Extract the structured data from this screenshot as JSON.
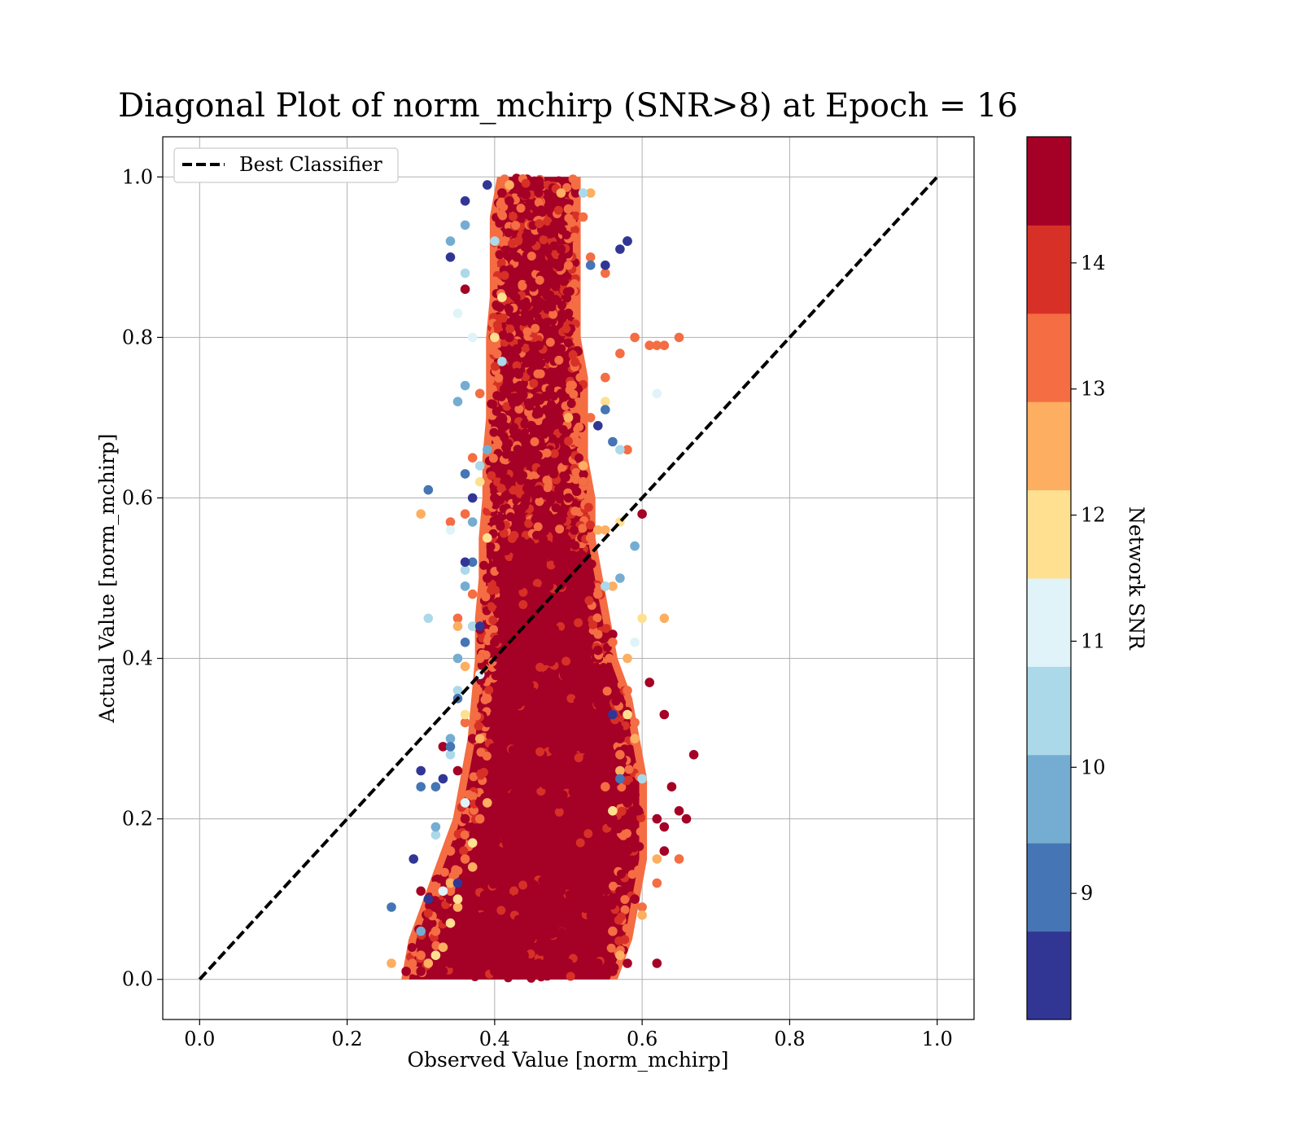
{
  "chart_data": {
    "type": "scatter",
    "title": "Diagonal Plot of norm_mchirp (SNR>8) at Epoch = 16",
    "xlabel": "Observed Value [norm_mchirp]",
    "ylabel": "Actual Value [norm_mchirp]",
    "xlim": [
      -0.05,
      1.05
    ],
    "ylim": [
      -0.05,
      1.05
    ],
    "xticks": [
      "0.0",
      "0.2",
      "0.4",
      "0.6",
      "0.8",
      "1.0"
    ],
    "yticks": [
      "0.0",
      "0.2",
      "0.4",
      "0.6",
      "0.8",
      "1.0"
    ],
    "grid": true,
    "legend": {
      "position": "top-left",
      "entries": [
        "Best Classifier"
      ]
    },
    "reference_line": {
      "name": "Best Classifier",
      "style": "dashed",
      "color": "#000000",
      "x": [
        0.0,
        1.0
      ],
      "y": [
        0.0,
        1.0
      ]
    },
    "colorbar": {
      "label": "Network SNR",
      "ticks": [
        "9",
        "10",
        "11",
        "12",
        "13",
        "14"
      ],
      "range": [
        8.0,
        15.0
      ],
      "colors": [
        "#313695",
        "#4575b4",
        "#74add1",
        "#abd9e9",
        "#e0f3f8",
        "#fee090",
        "#fdae61",
        "#f46d43",
        "#d73027",
        "#a50026"
      ]
    },
    "density_envelope": {
      "y": [
        0.0,
        0.05,
        0.1,
        0.15,
        0.2,
        0.25,
        0.3,
        0.35,
        0.4,
        0.45,
        0.5,
        0.55,
        0.6,
        0.65,
        0.7,
        0.75,
        0.8,
        0.85,
        0.9,
        0.95,
        1.0
      ],
      "xmin": [
        0.28,
        0.29,
        0.31,
        0.33,
        0.35,
        0.36,
        0.37,
        0.375,
        0.38,
        0.38,
        0.385,
        0.385,
        0.39,
        0.39,
        0.395,
        0.395,
        0.395,
        0.4,
        0.4,
        0.4,
        0.41
      ],
      "xmax": [
        0.56,
        0.58,
        0.59,
        0.6,
        0.6,
        0.6,
        0.59,
        0.58,
        0.56,
        0.55,
        0.54,
        0.53,
        0.53,
        0.52,
        0.52,
        0.52,
        0.51,
        0.51,
        0.51,
        0.51,
        0.51
      ]
    },
    "series": [
      {
        "snr": 14.5,
        "x": [
          0.28,
          0.3,
          0.32,
          0.34,
          0.36,
          0.38,
          0.4,
          0.42,
          0.44,
          0.46,
          0.48,
          0.5,
          0.52,
          0.54,
          0.56,
          0.58,
          0.33,
          0.35,
          0.37,
          0.39,
          0.41,
          0.43,
          0.45,
          0.47,
          0.49,
          0.51,
          0.53,
          0.55,
          0.57,
          0.59,
          0.36,
          0.38,
          0.4,
          0.42,
          0.44,
          0.46,
          0.48,
          0.5,
          0.52,
          0.54,
          0.56,
          0.58,
          0.37,
          0.39,
          0.41,
          0.43,
          0.45,
          0.47,
          0.49,
          0.51,
          0.53,
          0.55,
          0.57,
          0.38,
          0.4,
          0.42,
          0.44,
          0.46,
          0.48,
          0.5,
          0.52,
          0.54,
          0.56,
          0.39,
          0.41,
          0.43,
          0.45,
          0.47,
          0.49,
          0.51,
          0.53,
          0.4,
          0.42,
          0.44,
          0.46,
          0.48,
          0.5,
          0.52,
          0.41,
          0.43,
          0.45,
          0.47,
          0.49,
          0.51,
          0.42,
          0.44,
          0.46,
          0.48,
          0.5,
          0.43,
          0.45,
          0.47,
          0.49,
          0.51,
          0.66,
          0.67,
          0.63,
          0.62,
          0.61,
          0.64,
          0.6,
          0.65,
          0.35,
          0.33,
          0.55,
          0.58,
          0.34,
          0.63,
          0.62,
          0.3,
          0.59,
          0.36,
          0.63,
          0.41,
          0.42,
          0.49
        ],
        "y": [
          0.01,
          0.01,
          0.02,
          0.02,
          0.03,
          0.02,
          0.01,
          0.02,
          0.03,
          0.02,
          0.01,
          0.02,
          0.03,
          0.02,
          0.01,
          0.02,
          0.08,
          0.1,
          0.12,
          0.09,
          0.11,
          0.1,
          0.12,
          0.09,
          0.11,
          0.1,
          0.12,
          0.09,
          0.11,
          0.1,
          0.2,
          0.22,
          0.19,
          0.21,
          0.23,
          0.2,
          0.22,
          0.19,
          0.21,
          0.23,
          0.2,
          0.22,
          0.3,
          0.32,
          0.29,
          0.31,
          0.33,
          0.3,
          0.32,
          0.29,
          0.31,
          0.33,
          0.3,
          0.4,
          0.42,
          0.39,
          0.41,
          0.43,
          0.4,
          0.42,
          0.39,
          0.41,
          0.43,
          0.5,
          0.52,
          0.49,
          0.51,
          0.53,
          0.5,
          0.52,
          0.49,
          0.6,
          0.62,
          0.59,
          0.61,
          0.63,
          0.6,
          0.62,
          0.7,
          0.72,
          0.69,
          0.71,
          0.73,
          0.7,
          0.8,
          0.82,
          0.79,
          0.81,
          0.83,
          0.9,
          0.92,
          0.89,
          0.91,
          0.98,
          0.2,
          0.28,
          0.33,
          0.02,
          0.37,
          0.24,
          0.58,
          0.21,
          0.26,
          0.29,
          0.13,
          0.16,
          0.1,
          0.16,
          0.2,
          0.11,
          0.23,
          0.86,
          0.19,
          0.98,
          0.97,
          0.97
        ]
      },
      {
        "snr": 13.5,
        "x": [
          0.3,
          0.32,
          0.34,
          0.36,
          0.38,
          0.55,
          0.57,
          0.59,
          0.58,
          0.56,
          0.54,
          0.53,
          0.52,
          0.36,
          0.37,
          0.38,
          0.39,
          0.53,
          0.55,
          0.57,
          0.59,
          0.61,
          0.63,
          0.62,
          0.65,
          0.65,
          0.62,
          0.6,
          0.56,
          0.53,
          0.52,
          0.51,
          0.5,
          0.34,
          0.36,
          0.38,
          0.37,
          0.35,
          0.34,
          0.55,
          0.58
        ],
        "y": [
          0.03,
          0.06,
          0.11,
          0.15,
          0.2,
          0.24,
          0.28,
          0.32,
          0.36,
          0.42,
          0.48,
          0.55,
          0.62,
          0.58,
          0.48,
          0.4,
          0.35,
          0.7,
          0.75,
          0.78,
          0.8,
          0.79,
          0.79,
          0.79,
          0.8,
          0.15,
          0.12,
          0.09,
          0.06,
          0.9,
          0.95,
          0.99,
          0.96,
          0.16,
          0.32,
          0.73,
          0.65,
          0.45,
          0.57,
          0.88,
          0.66
        ]
      },
      {
        "snr": 12.5,
        "x": [
          0.31,
          0.33,
          0.35,
          0.37,
          0.39,
          0.57,
          0.59,
          0.58,
          0.56,
          0.54,
          0.52,
          0.5,
          0.26,
          0.63,
          0.62,
          0.3,
          0.36,
          0.38,
          0.35,
          0.34,
          0.55,
          0.6,
          0.57,
          0.53,
          0.42,
          0.49
        ],
        "y": [
          0.02,
          0.04,
          0.09,
          0.14,
          0.22,
          0.26,
          0.3,
          0.4,
          0.49,
          0.56,
          0.64,
          0.7,
          0.02,
          0.45,
          0.15,
          0.58,
          0.39,
          0.3,
          0.44,
          0.12,
          0.56,
          0.08,
          0.03,
          0.98,
          0.99,
          0.98
        ]
      },
      {
        "snr": 11.5,
        "x": [
          0.32,
          0.34,
          0.35,
          0.37,
          0.56,
          0.58,
          0.6,
          0.55,
          0.38,
          0.39,
          0.36,
          0.57,
          0.4,
          0.41
        ],
        "y": [
          0.03,
          0.07,
          0.1,
          0.17,
          0.21,
          0.33,
          0.45,
          0.72,
          0.62,
          0.55,
          0.33,
          0.57,
          0.8,
          0.85
        ]
      },
      {
        "snr": 11.0,
        "x": [
          0.33,
          0.36,
          0.38,
          0.62,
          0.35,
          0.37,
          0.59,
          0.34
        ],
        "y": [
          0.11,
          0.22,
          0.38,
          0.73,
          0.83,
          0.8,
          0.42,
          0.56
        ]
      },
      {
        "snr": 10.3,
        "x": [
          0.32,
          0.34,
          0.35,
          0.37,
          0.36,
          0.38,
          0.41,
          0.31,
          0.57,
          0.6,
          0.55,
          0.52,
          0.36,
          0.4
        ],
        "y": [
          0.18,
          0.28,
          0.36,
          0.44,
          0.51,
          0.64,
          0.77,
          0.45,
          0.66,
          0.25,
          0.49,
          0.98,
          0.88,
          0.92
        ]
      },
      {
        "snr": 9.7,
        "x": [
          0.32,
          0.34,
          0.35,
          0.36,
          0.37,
          0.39,
          0.3,
          0.57,
          0.59,
          0.34,
          0.36,
          0.36,
          0.35
        ],
        "y": [
          0.19,
          0.3,
          0.4,
          0.49,
          0.57,
          0.66,
          0.06,
          0.5,
          0.54,
          0.92,
          0.94,
          0.74,
          0.72
        ]
      },
      {
        "snr": 9.0,
        "x": [
          0.26,
          0.3,
          0.32,
          0.34,
          0.35,
          0.36,
          0.37,
          0.36,
          0.58,
          0.57,
          0.55,
          0.56,
          0.31,
          0.53
        ],
        "y": [
          0.09,
          0.24,
          0.24,
          0.29,
          0.35,
          0.42,
          0.52,
          0.63,
          0.92,
          0.25,
          0.71,
          0.67,
          0.61,
          0.89
        ]
      },
      {
        "snr": 8.3,
        "x": [
          0.29,
          0.31,
          0.3,
          0.33,
          0.35,
          0.36,
          0.37,
          0.34,
          0.36,
          0.39,
          0.57,
          0.58,
          0.56,
          0.55,
          0.54,
          0.38
        ],
        "y": [
          0.15,
          0.1,
          0.26,
          0.25,
          0.12,
          0.52,
          0.6,
          0.9,
          0.97,
          0.99,
          0.91,
          0.92,
          0.33,
          0.89,
          0.69,
          0.44
        ]
      }
    ]
  }
}
